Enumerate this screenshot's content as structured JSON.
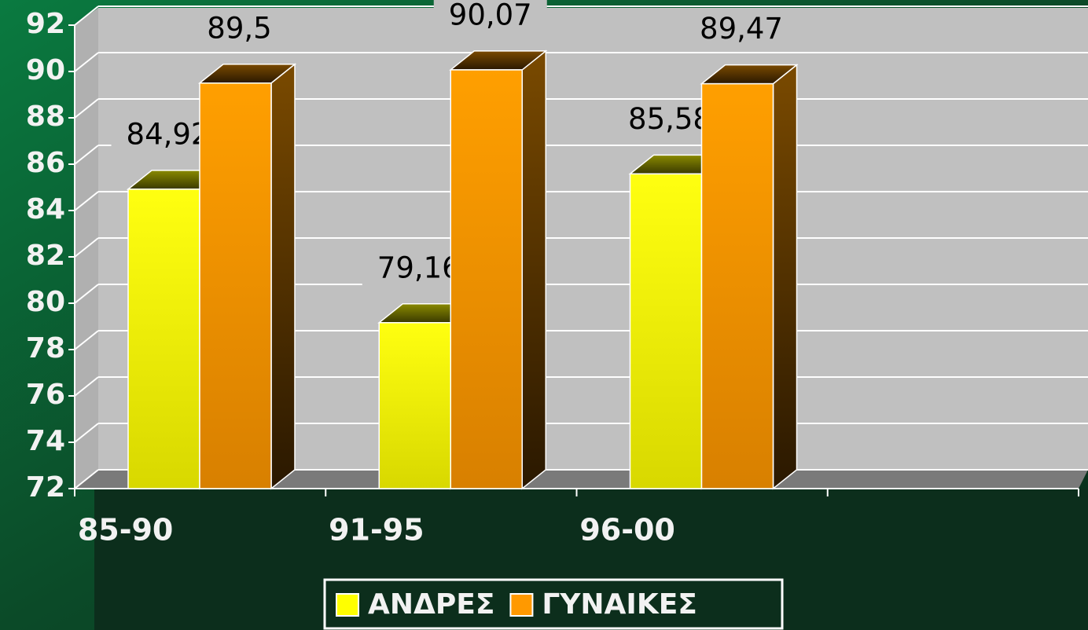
{
  "chart_data": {
    "type": "bar3d",
    "categories": [
      "85-90",
      "91-95",
      "96-00",
      null
    ],
    "series": [
      {
        "name": "ΑΝΔΡΕΣ",
        "color": "#ffff00",
        "values": [
          84.92,
          79.16,
          85.58,
          null
        ],
        "value_labels": [
          "84,92",
          "79,16",
          "85,58",
          null
        ]
      },
      {
        "name": "ΓΥΝΑΙΚΕΣ",
        "color": "#ff9900",
        "values": [
          89.5,
          90.07,
          89.47,
          null
        ],
        "value_labels": [
          "89,5",
          "90,07",
          "89,47",
          null
        ]
      }
    ],
    "ylim": [
      72,
      92
    ],
    "yticks": [
      72,
      74,
      76,
      78,
      80,
      82,
      84,
      86,
      88,
      90,
      92
    ],
    "grid": true,
    "legend": "bottom"
  }
}
